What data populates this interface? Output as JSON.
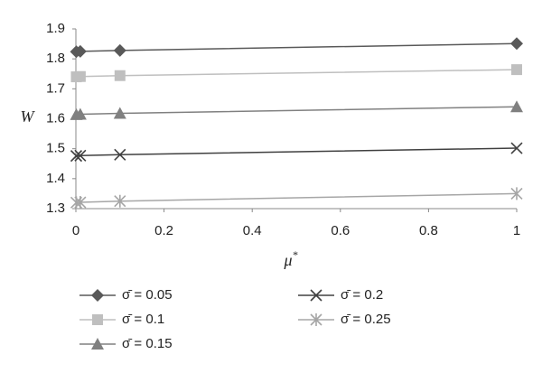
{
  "chart_data": {
    "type": "line",
    "xlabel": "μ",
    "xlabel_sup": "*",
    "ylabel": "W",
    "x": [
      0.001,
      0.01,
      0.1,
      1
    ],
    "series": [
      {
        "name": "σ̄ = 0.05",
        "color": "#595959",
        "marker": "diamond",
        "values": [
          1.824,
          1.825,
          1.828,
          1.851
        ]
      },
      {
        "name": "σ̄ = 0.1",
        "color": "#bfbfbf",
        "marker": "square",
        "values": [
          1.74,
          1.741,
          1.744,
          1.764
        ]
      },
      {
        "name": "σ̄ = 0.15",
        "color": "#808080",
        "marker": "triangle",
        "values": [
          1.614,
          1.615,
          1.618,
          1.64
        ]
      },
      {
        "name": "σ̄ = 0.2",
        "color": "#404040",
        "marker": "x",
        "values": [
          1.476,
          1.477,
          1.48,
          1.502
        ]
      },
      {
        "name": "σ̄ = 0.25",
        "color": "#a6a6a6",
        "marker": "star",
        "values": [
          1.32,
          1.321,
          1.325,
          1.35
        ]
      }
    ],
    "xlim": [
      0,
      1
    ],
    "xticks": [
      0,
      0.2,
      0.4,
      0.6,
      0.8,
      1
    ],
    "ylim": [
      1.3,
      1.9
    ],
    "yticks": [
      1.3,
      1.4,
      1.5,
      1.6,
      1.7,
      1.8,
      1.9
    ],
    "grid": false
  }
}
